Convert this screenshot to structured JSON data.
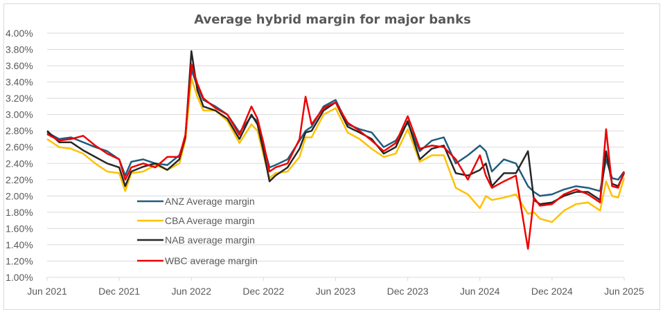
{
  "chart_data": {
    "type": "line",
    "title": "Average hybrid margin for major banks",
    "xlabel": "",
    "ylabel": "",
    "ylim": [
      1.0,
      4.0
    ],
    "y_ticks": [
      "4.00%",
      "3.80%",
      "3.60%",
      "3.40%",
      "3.20%",
      "3.00%",
      "2.80%",
      "2.60%",
      "2.40%",
      "2.20%",
      "2.00%",
      "1.80%",
      "1.60%",
      "1.40%",
      "1.20%",
      "1.00%"
    ],
    "y_tick_values": [
      4.0,
      3.8,
      3.6,
      3.4,
      3.2,
      3.0,
      2.8,
      2.6,
      2.4,
      2.2,
      2.0,
      1.8,
      1.6,
      1.4,
      1.2,
      1.0
    ],
    "x_ticks": [
      "Jun 2021",
      "Dec 2021",
      "Jun 2022",
      "Dec 2022",
      "Jun 2023",
      "Dec 2023",
      "Jun 2024",
      "Dec 2024",
      "Jun 2025"
    ],
    "x_tick_values": [
      0,
      6,
      12,
      18,
      24,
      30,
      36,
      42,
      48
    ],
    "x_unit": "months since Jun 2021",
    "grid": true,
    "legend_position": "lower-left inside",
    "x": [
      0,
      1,
      2,
      3,
      4,
      5,
      6,
      6.5,
      7,
      8,
      9,
      10,
      11,
      11.5,
      12,
      12.5,
      13,
      14,
      15,
      16,
      17,
      17.5,
      18,
      18.5,
      19,
      20,
      21,
      21.5,
      22,
      23,
      24,
      25,
      26,
      27,
      28,
      29,
      30,
      31,
      32,
      33,
      34,
      35,
      36,
      36.5,
      37,
      38,
      39,
      40,
      40.5,
      41,
      42,
      43,
      44,
      45,
      46,
      46.5,
      47,
      47.5,
      48
    ],
    "series": [
      {
        "name": "ANZ Average margin",
        "color": "#1F5C7E",
        "values": [
          2.78,
          2.7,
          2.72,
          2.66,
          2.6,
          2.55,
          2.45,
          2.25,
          2.42,
          2.45,
          2.4,
          2.38,
          2.5,
          2.72,
          3.55,
          3.35,
          3.18,
          3.1,
          3.0,
          2.78,
          2.98,
          2.92,
          2.62,
          2.35,
          2.38,
          2.45,
          2.68,
          2.8,
          2.85,
          3.1,
          3.18,
          2.88,
          2.82,
          2.78,
          2.6,
          2.68,
          2.9,
          2.55,
          2.68,
          2.72,
          2.4,
          2.5,
          2.62,
          2.55,
          2.3,
          2.45,
          2.4,
          2.12,
          2.05,
          2.0,
          2.02,
          2.08,
          2.12,
          2.1,
          2.06,
          2.45,
          2.22,
          2.2,
          2.3
        ]
      },
      {
        "name": "CBA Average margin",
        "color": "#FFC000",
        "values": [
          2.7,
          2.6,
          2.58,
          2.52,
          2.4,
          2.3,
          2.28,
          2.06,
          2.28,
          2.3,
          2.38,
          2.32,
          2.4,
          2.68,
          3.45,
          3.22,
          3.05,
          3.05,
          2.92,
          2.65,
          2.88,
          2.8,
          2.5,
          2.22,
          2.28,
          2.3,
          2.48,
          2.72,
          2.72,
          3.0,
          3.08,
          2.78,
          2.7,
          2.58,
          2.48,
          2.52,
          2.82,
          2.42,
          2.5,
          2.5,
          2.1,
          2.02,
          1.85,
          2.0,
          1.95,
          1.98,
          2.02,
          1.78,
          1.8,
          1.72,
          1.68,
          1.82,
          1.9,
          1.92,
          1.82,
          2.18,
          2.0,
          1.98,
          2.22
        ]
      },
      {
        "name": "NAB average margin",
        "color": "#262626",
        "values": [
          2.8,
          2.66,
          2.66,
          2.56,
          2.48,
          2.4,
          2.35,
          2.12,
          2.3,
          2.36,
          2.4,
          2.32,
          2.45,
          2.72,
          3.78,
          3.3,
          3.1,
          3.05,
          2.95,
          2.7,
          3.0,
          2.88,
          2.55,
          2.18,
          2.25,
          2.35,
          2.58,
          2.78,
          2.8,
          3.05,
          3.15,
          2.85,
          2.78,
          2.7,
          2.52,
          2.6,
          2.92,
          2.45,
          2.58,
          2.62,
          2.28,
          2.25,
          2.32,
          2.4,
          2.12,
          2.28,
          2.28,
          2.55,
          1.95,
          1.9,
          1.92,
          2.0,
          2.05,
          2.05,
          1.95,
          2.55,
          2.15,
          2.12,
          2.28
        ]
      },
      {
        "name": "WBC average margin",
        "color": "#EE0000",
        "values": [
          2.76,
          2.68,
          2.7,
          2.74,
          2.62,
          2.52,
          2.45,
          2.2,
          2.35,
          2.4,
          2.35,
          2.48,
          2.48,
          2.75,
          3.62,
          3.38,
          3.2,
          3.08,
          3.0,
          2.75,
          3.1,
          2.95,
          2.65,
          2.3,
          2.35,
          2.4,
          2.7,
          3.22,
          2.88,
          3.08,
          3.15,
          2.9,
          2.8,
          2.68,
          2.55,
          2.65,
          2.98,
          2.58,
          2.62,
          2.6,
          2.45,
          2.2,
          2.5,
          2.25,
          2.1,
          2.18,
          2.25,
          1.35,
          1.98,
          1.88,
          1.9,
          2.02,
          2.08,
          2.02,
          1.92,
          2.82,
          2.12,
          2.1,
          2.3
        ]
      }
    ]
  }
}
